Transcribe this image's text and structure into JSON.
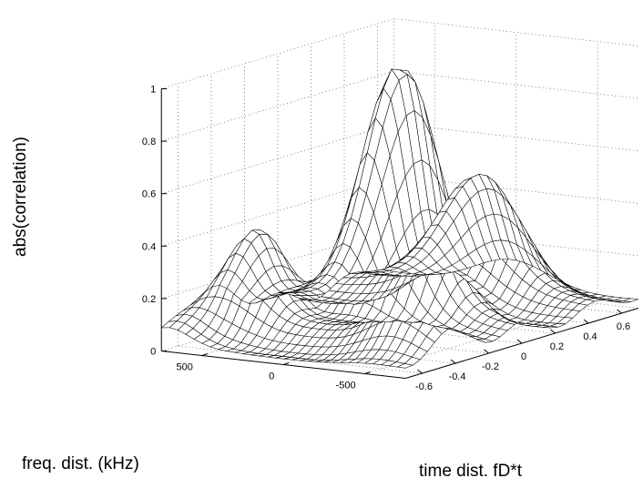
{
  "chart_data": {
    "type": "surface",
    "zlabel": "abs(correlation)",
    "xlabel": "freq. dist. (kHz)",
    "ylabel": "time dist. fD*t",
    "xlim": [
      -750,
      750
    ],
    "ylim": [
      -0.7,
      0.7
    ],
    "zlim": [
      0,
      1
    ],
    "grid": true,
    "x_ticks": [
      500,
      0,
      -500
    ],
    "y_ticks": [
      -0.6,
      -0.4,
      -0.2,
      0,
      0.2,
      0.4,
      0.6
    ],
    "z_ticks": [
      0,
      0.2,
      0.4,
      0.6,
      0.8,
      1
    ],
    "x_tick_labels": [
      "500",
      "0",
      "-500"
    ],
    "y_tick_labels": [
      "-0.6",
      "-0.4",
      "-0.2",
      "0",
      "0.2",
      "0.4",
      "0.6"
    ],
    "z_tick_labels": [
      "0",
      "0.2",
      "0.4",
      "0.6",
      "0.8",
      "1"
    ],
    "surface": {
      "description_free_model": true,
      "x_samples": 31,
      "y_samples": 33,
      "peak": {
        "x": 0,
        "y": 0,
        "z": 0.97
      },
      "secondary_peaks": [
        {
          "x": 0,
          "y": 0.5,
          "z": 0.49
        },
        {
          "x": 500,
          "y": -0.35,
          "z": 0.43
        },
        {
          "x": -500,
          "y": -0.4,
          "z": 0.23
        },
        {
          "x": 700,
          "y": -0.65,
          "z": 0.13
        }
      ],
      "baseline_z": 0.05
    }
  }
}
